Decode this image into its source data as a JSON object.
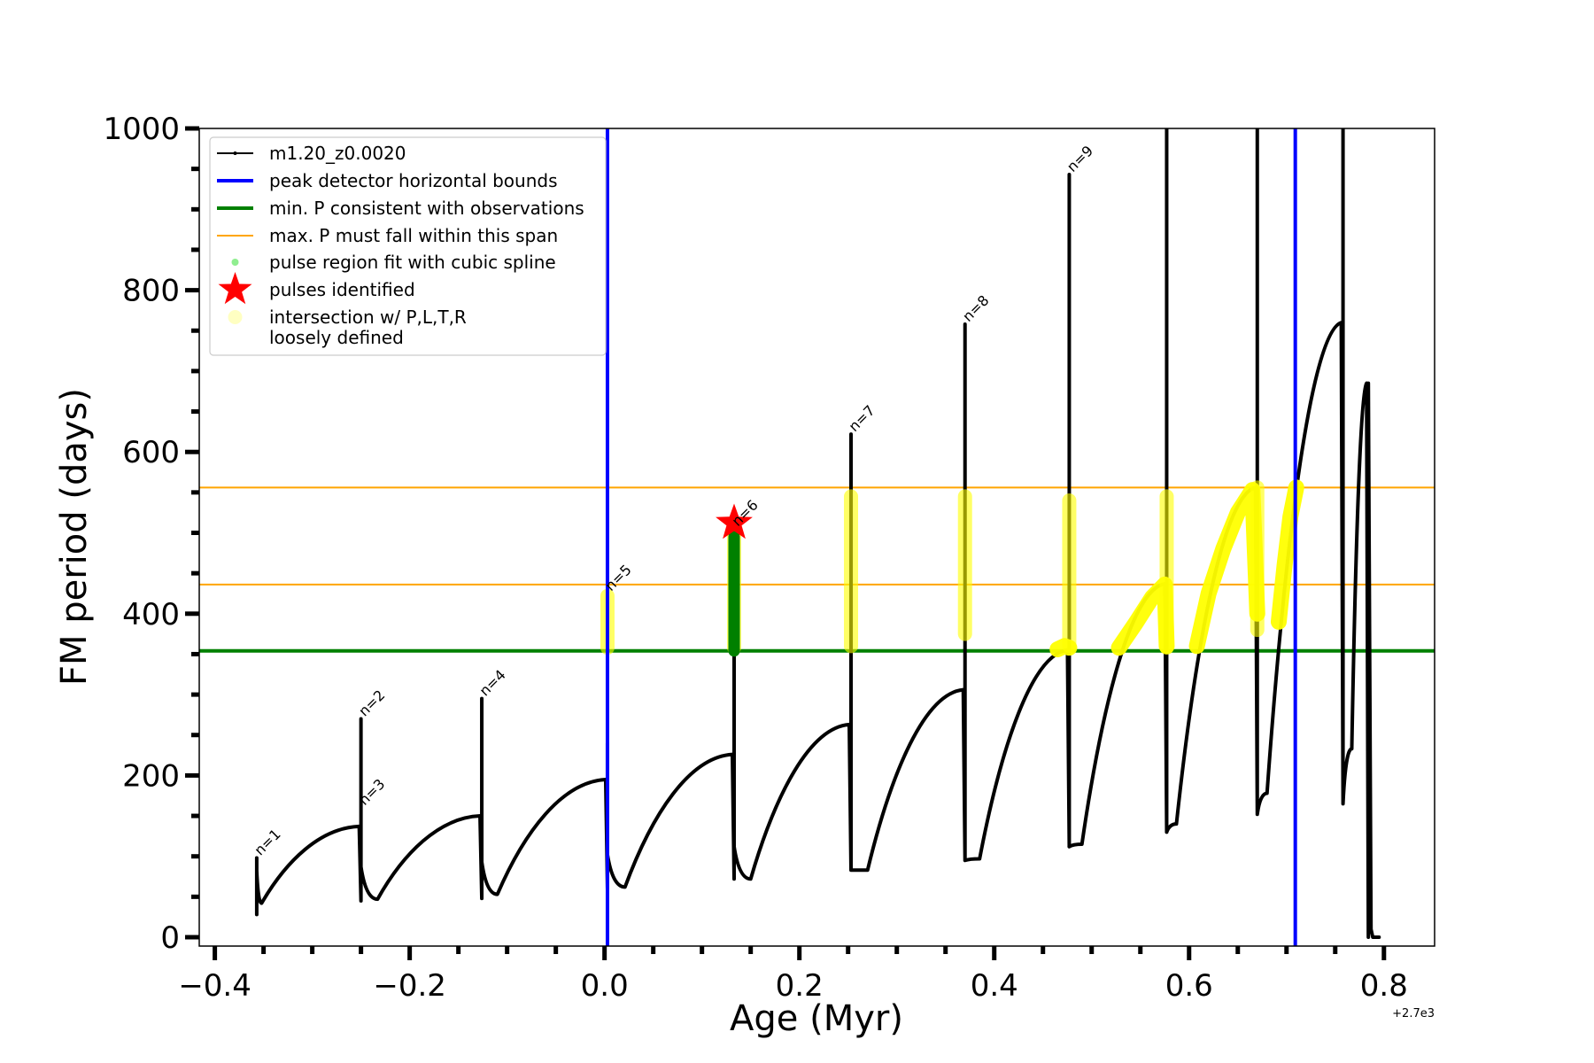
{
  "chart_data": {
    "type": "line",
    "title": "",
    "xlabel": "Age (Myr)",
    "ylabel": "FM period (days)",
    "x_offset_label": "+2.7e3",
    "xlim": [
      -0.416,
      0.852
    ],
    "ylim": [
      -10,
      1000
    ],
    "xticks": [
      -0.4,
      -0.2,
      0.0,
      0.2,
      0.4,
      0.6,
      0.8
    ],
    "xtick_labels": [
      "−0.4",
      "−0.2",
      "0.0",
      "0.2",
      "0.4",
      "0.6",
      "0.8"
    ],
    "yticks": [
      0,
      200,
      400,
      600,
      800,
      1000
    ],
    "ytick_labels": [
      "0",
      "200",
      "400",
      "600",
      "800",
      "1000"
    ],
    "grid": false,
    "legend_position": "top-left",
    "legend": [
      {
        "label": "m1.20_z0.0020",
        "kind": "line-marker",
        "color": "#000000"
      },
      {
        "label": "peak detector horizontal bounds",
        "kind": "line",
        "color": "#0000ff"
      },
      {
        "label": "min. P consistent with observations",
        "kind": "line",
        "color": "#008000"
      },
      {
        "label": "max. P must fall within this span",
        "kind": "thin-line",
        "color": "#ffa500"
      },
      {
        "label": "pulse region fit with cubic spline",
        "kind": "dot",
        "color": "#90ee90"
      },
      {
        "label": "pulses identified",
        "kind": "star",
        "color": "#ff0000"
      },
      {
        "label": "intersection w/ P,L,T,R",
        "label2": "loosely defined",
        "kind": "dot",
        "color": "#ffff99"
      }
    ],
    "vlines": [
      {
        "name": "peak-detector-lower-bound",
        "x": 0.003,
        "color": "#0000ff"
      },
      {
        "name": "peak-detector-upper-bound",
        "x": 0.709,
        "color": "#0000ff"
      }
    ],
    "hlines": [
      {
        "name": "min-period",
        "y": 354,
        "color": "#008000"
      },
      {
        "name": "max-period-low",
        "y": 436,
        "color": "#ffa500"
      },
      {
        "name": "max-period-high",
        "y": 556,
        "color": "#ffa500"
      }
    ],
    "series": [
      {
        "name": "m1.20_z0.0020",
        "color": "#000000",
        "pulses": [
          {
            "x": -0.357,
            "peak": 98,
            "min_before": 28,
            "trough_x": -0.352,
            "trough": 42,
            "rise_end": 137
          },
          {
            "x": -0.25,
            "peak": 270,
            "min_before": 45,
            "trough_x": -0.233,
            "trough": 47,
            "rise_end": 150
          },
          {
            "x": -0.126,
            "peak": 295,
            "min_before": 48,
            "trough_x": -0.11,
            "trough": 53,
            "rise_end": 195
          },
          {
            "x": 0.003,
            "peak": 240,
            "min_before": 60,
            "trough_x": 0.021,
            "trough": 62,
            "rise_end": 226
          },
          {
            "x": 0.133,
            "peak": 500,
            "min_before": 72,
            "trough_x": 0.15,
            "trough": 72,
            "rise_end": 263
          },
          {
            "x": 0.253,
            "peak": 622,
            "min_before": 83,
            "trough_x": 0.27,
            "trough": 83,
            "rise_end": 306
          },
          {
            "x": 0.37,
            "peak": 758,
            "min_before": 95,
            "trough_x": 0.385,
            "trough": 97,
            "rise_end": 355
          },
          {
            "x": 0.477,
            "peak": 943,
            "min_before": 112,
            "trough_x": 0.49,
            "trough": 115,
            "rise_end": 437
          },
          {
            "x": 0.577,
            "peak": 1000,
            "min_before": 130,
            "trough_x": 0.587,
            "trough": 140,
            "rise_end": 556
          },
          {
            "x": 0.67,
            "peak": 1000,
            "min_before": 152,
            "trough_x": 0.68,
            "trough": 178,
            "rise_end": 760
          },
          {
            "x": 0.758,
            "peak": 1000,
            "min_before": 165,
            "trough_x": 0.767,
            "trough": 233,
            "rise_end": 685
          },
          {
            "x": 0.784,
            "peak": 685,
            "min_before": 0,
            "trough_x": 0.795,
            "trough": 0,
            "rise_end": 0
          }
        ]
      }
    ],
    "annotations": [
      {
        "text": "n=1",
        "x": -0.356,
        "y": 98
      },
      {
        "text": "n=2",
        "x": -0.249,
        "y": 270
      },
      {
        "text": "n=3",
        "x": -0.249,
        "y": 160
      },
      {
        "text": "n=4",
        "x": -0.125,
        "y": 295
      },
      {
        "text": "n=5",
        "x": 0.004,
        "y": 425
      },
      {
        "text": "n=6",
        "x": 0.134,
        "y": 505
      },
      {
        "text": "n=7",
        "x": 0.254,
        "y": 622
      },
      {
        "text": "n=8",
        "x": 0.371,
        "y": 758
      },
      {
        "text": "n=9",
        "x": 0.478,
        "y": 943
      }
    ],
    "pulses_identified": [
      {
        "x": 0.133,
        "y": 512
      }
    ],
    "spline_fit_region": {
      "x": 0.133,
      "y_from": 354,
      "y_to": 495
    },
    "intersection_regions": [
      {
        "kind": "vertical",
        "x": 0.003,
        "y_from": 358,
        "y_to": 422
      },
      {
        "kind": "vertical",
        "x": 0.133,
        "y_from": 358,
        "y_to": 510
      },
      {
        "kind": "vertical",
        "x": 0.253,
        "y_from": 360,
        "y_to": 545
      },
      {
        "kind": "vertical",
        "x": 0.37,
        "y_from": 375,
        "y_to": 545
      },
      {
        "kind": "vertical",
        "x": 0.477,
        "y_from": 360,
        "y_to": 540
      },
      {
        "kind": "vertical",
        "x": 0.577,
        "y_from": 358,
        "y_to": 545
      },
      {
        "kind": "vertical",
        "x": 0.67,
        "y_from": 380,
        "y_to": 556
      },
      {
        "kind": "curve",
        "points": [
          [
            0.465,
            356
          ],
          [
            0.472,
            360
          ],
          [
            0.477,
            358
          ]
        ]
      },
      {
        "kind": "curve",
        "points": [
          [
            0.528,
            358
          ],
          [
            0.545,
            388
          ],
          [
            0.562,
            420
          ],
          [
            0.575,
            436
          ],
          [
            0.577,
            360
          ]
        ]
      },
      {
        "kind": "curve",
        "points": [
          [
            0.608,
            360
          ],
          [
            0.62,
            425
          ],
          [
            0.635,
            480
          ],
          [
            0.65,
            525
          ],
          [
            0.665,
            553
          ],
          [
            0.67,
            400
          ]
        ]
      },
      {
        "kind": "curve",
        "points": [
          [
            0.692,
            390
          ],
          [
            0.698,
            460
          ],
          [
            0.704,
            520
          ],
          [
            0.71,
            556
          ]
        ]
      }
    ]
  }
}
